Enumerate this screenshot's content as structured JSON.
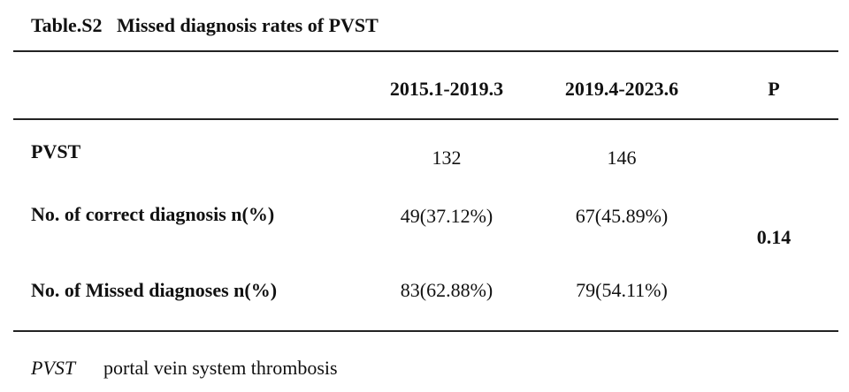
{
  "title": "Table.S2   Missed diagnosis rates of PVST",
  "table": {
    "columns": [
      "2015.1-2019.3",
      "2019.4-2023.6",
      "P"
    ],
    "rows": [
      {
        "label": "PVST",
        "values": [
          "132",
          "146"
        ]
      },
      {
        "label": "No. of correct diagnosis n(%)",
        "values": [
          "49(37.12%)",
          "67(45.89%)"
        ]
      },
      {
        "label": "No. of Missed diagnoses n(%)",
        "values": [
          "83(62.88%)",
          "79(54.11%)"
        ]
      }
    ],
    "p_value": "0.14"
  },
  "footnote": {
    "abbreviation": "PVST",
    "definition": "portal vein system thrombosis"
  }
}
